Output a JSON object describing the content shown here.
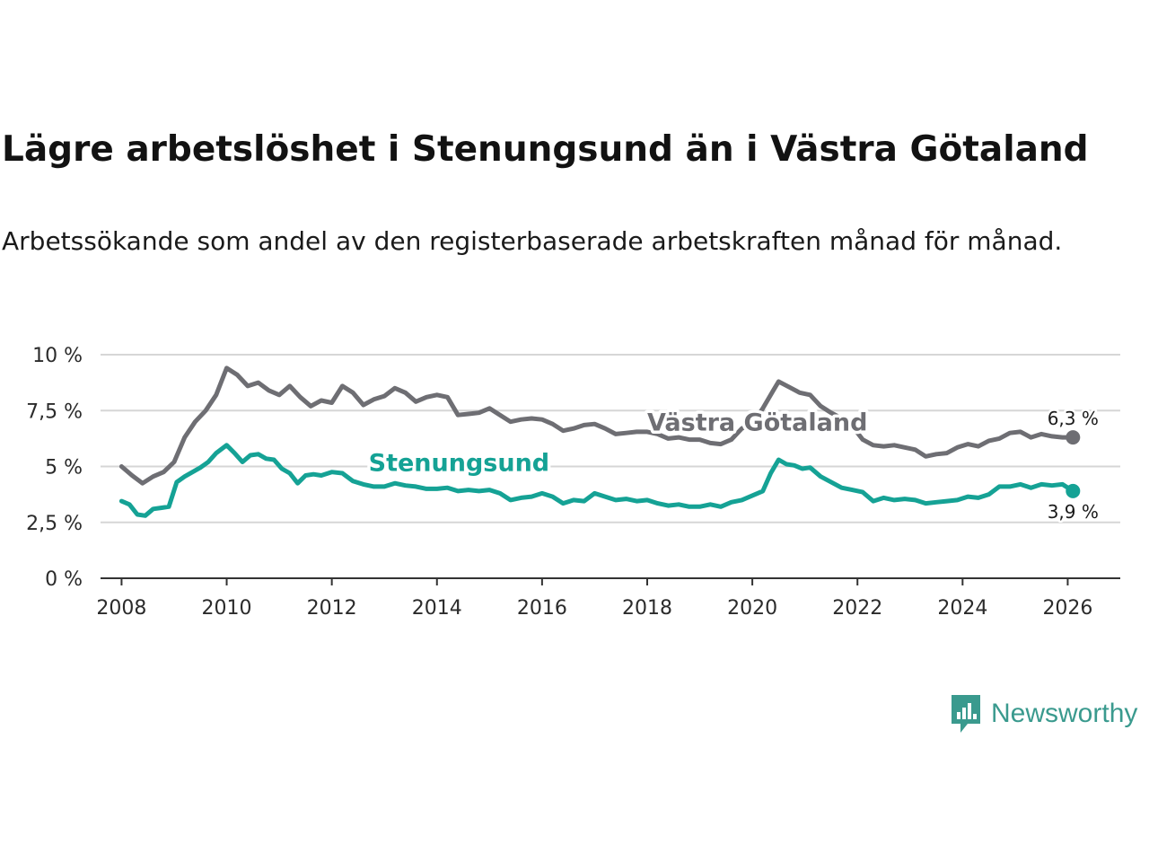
{
  "header": {
    "title": "Lägre arbetslöshet i Stenungsund än i Västra Götaland",
    "subtitle": "Arbetssökande som andel av den registerbaserade arbetskraften månad för månad."
  },
  "brand": {
    "name": "Newsworthy",
    "icon": "newsworthy-logo-icon",
    "color": "#3a9a8e"
  },
  "chart_data": {
    "type": "line",
    "title": "Lägre arbetslöshet i Stenungsund än i Västra Götaland",
    "xlabel": "",
    "ylabel": "",
    "xlim": [
      2007.6,
      2027.0
    ],
    "ylim": [
      0,
      10
    ],
    "grid": true,
    "yticks": [
      {
        "value": 0,
        "label": "0 %"
      },
      {
        "value": 2.5,
        "label": "2,5 %"
      },
      {
        "value": 5,
        "label": "5 %"
      },
      {
        "value": 7.5,
        "label": "7,5 %"
      },
      {
        "value": 10,
        "label": "10 %"
      }
    ],
    "xticks": [
      {
        "value": 2008,
        "label": "2008"
      },
      {
        "value": 2010,
        "label": "2010"
      },
      {
        "value": 2012,
        "label": "2012"
      },
      {
        "value": 2014,
        "label": "2014"
      },
      {
        "value": 2016,
        "label": "2016"
      },
      {
        "value": 2018,
        "label": "2018"
      },
      {
        "value": 2020,
        "label": "2020"
      },
      {
        "value": 2022,
        "label": "2022"
      },
      {
        "value": 2024,
        "label": "2024"
      },
      {
        "value": 2026,
        "label": "2026"
      }
    ],
    "series": [
      {
        "name": "Västra Götaland",
        "color": "#6e6e73",
        "end_label": "6,3 %",
        "label_at": [
          2018.0,
          6.6
        ],
        "points": [
          [
            2008.0,
            5.0
          ],
          [
            2008.2,
            4.6
          ],
          [
            2008.4,
            4.25
          ],
          [
            2008.6,
            4.55
          ],
          [
            2008.8,
            4.75
          ],
          [
            2009.0,
            5.2
          ],
          [
            2009.2,
            6.3
          ],
          [
            2009.4,
            7.0
          ],
          [
            2009.6,
            7.5
          ],
          [
            2009.8,
            8.2
          ],
          [
            2010.0,
            9.4
          ],
          [
            2010.2,
            9.1
          ],
          [
            2010.4,
            8.6
          ],
          [
            2010.6,
            8.75
          ],
          [
            2010.8,
            8.4
          ],
          [
            2011.0,
            8.2
          ],
          [
            2011.2,
            8.6
          ],
          [
            2011.4,
            8.1
          ],
          [
            2011.6,
            7.7
          ],
          [
            2011.8,
            7.95
          ],
          [
            2012.0,
            7.85
          ],
          [
            2012.2,
            8.6
          ],
          [
            2012.4,
            8.3
          ],
          [
            2012.6,
            7.75
          ],
          [
            2012.8,
            8.0
          ],
          [
            2013.0,
            8.15
          ],
          [
            2013.2,
            8.5
          ],
          [
            2013.4,
            8.3
          ],
          [
            2013.6,
            7.9
          ],
          [
            2013.8,
            8.1
          ],
          [
            2014.0,
            8.2
          ],
          [
            2014.2,
            8.1
          ],
          [
            2014.4,
            7.3
          ],
          [
            2014.6,
            7.35
          ],
          [
            2014.8,
            7.4
          ],
          [
            2015.0,
            7.6
          ],
          [
            2015.2,
            7.3
          ],
          [
            2015.4,
            7.0
          ],
          [
            2015.6,
            7.1
          ],
          [
            2015.8,
            7.15
          ],
          [
            2016.0,
            7.1
          ],
          [
            2016.2,
            6.9
          ],
          [
            2016.4,
            6.6
          ],
          [
            2016.6,
            6.7
          ],
          [
            2016.8,
            6.85
          ],
          [
            2017.0,
            6.9
          ],
          [
            2017.2,
            6.7
          ],
          [
            2017.4,
            6.45
          ],
          [
            2017.6,
            6.5
          ],
          [
            2017.8,
            6.55
          ],
          [
            2018.0,
            6.55
          ],
          [
            2018.2,
            6.45
          ],
          [
            2018.4,
            6.25
          ],
          [
            2018.6,
            6.3
          ],
          [
            2018.8,
            6.2
          ],
          [
            2019.0,
            6.2
          ],
          [
            2019.2,
            6.05
          ],
          [
            2019.4,
            6.0
          ],
          [
            2019.6,
            6.2
          ],
          [
            2019.8,
            6.7
          ],
          [
            2020.0,
            6.9
          ],
          [
            2020.2,
            7.6
          ],
          [
            2020.4,
            8.4
          ],
          [
            2020.5,
            8.8
          ],
          [
            2020.7,
            8.55
          ],
          [
            2020.9,
            8.3
          ],
          [
            2021.1,
            8.2
          ],
          [
            2021.3,
            7.7
          ],
          [
            2021.5,
            7.4
          ],
          [
            2021.7,
            7.15
          ],
          [
            2021.9,
            6.8
          ],
          [
            2022.1,
            6.2
          ],
          [
            2022.3,
            5.95
          ],
          [
            2022.5,
            5.9
          ],
          [
            2022.7,
            5.95
          ],
          [
            2022.9,
            5.85
          ],
          [
            2023.1,
            5.75
          ],
          [
            2023.3,
            5.45
          ],
          [
            2023.5,
            5.55
          ],
          [
            2023.7,
            5.6
          ],
          [
            2023.9,
            5.85
          ],
          [
            2024.1,
            6.0
          ],
          [
            2024.3,
            5.9
          ],
          [
            2024.5,
            6.15
          ],
          [
            2024.7,
            6.25
          ],
          [
            2024.9,
            6.5
          ],
          [
            2025.1,
            6.55
          ],
          [
            2025.3,
            6.3
          ],
          [
            2025.5,
            6.45
          ],
          [
            2025.7,
            6.35
          ],
          [
            2025.9,
            6.3
          ],
          [
            2026.1,
            6.3
          ]
        ]
      },
      {
        "name": "Stenungsund",
        "color": "#15a295",
        "end_label": "3,9 %",
        "label_at": [
          2012.7,
          4.8
        ],
        "points": [
          [
            2008.0,
            3.45
          ],
          [
            2008.15,
            3.3
          ],
          [
            2008.3,
            2.85
          ],
          [
            2008.45,
            2.8
          ],
          [
            2008.6,
            3.1
          ],
          [
            2008.75,
            3.15
          ],
          [
            2008.9,
            3.2
          ],
          [
            2009.05,
            4.3
          ],
          [
            2009.2,
            4.55
          ],
          [
            2009.35,
            4.75
          ],
          [
            2009.5,
            4.95
          ],
          [
            2009.65,
            5.2
          ],
          [
            2009.8,
            5.6
          ],
          [
            2010.0,
            5.95
          ],
          [
            2010.15,
            5.6
          ],
          [
            2010.3,
            5.2
          ],
          [
            2010.45,
            5.5
          ],
          [
            2010.6,
            5.55
          ],
          [
            2010.75,
            5.35
          ],
          [
            2010.9,
            5.3
          ],
          [
            2011.05,
            4.9
          ],
          [
            2011.2,
            4.7
          ],
          [
            2011.35,
            4.25
          ],
          [
            2011.5,
            4.6
          ],
          [
            2011.65,
            4.65
          ],
          [
            2011.8,
            4.6
          ],
          [
            2012.0,
            4.75
          ],
          [
            2012.2,
            4.7
          ],
          [
            2012.4,
            4.35
          ],
          [
            2012.6,
            4.2
          ],
          [
            2012.8,
            4.1
          ],
          [
            2013.0,
            4.1
          ],
          [
            2013.2,
            4.25
          ],
          [
            2013.4,
            4.15
          ],
          [
            2013.6,
            4.1
          ],
          [
            2013.8,
            4.0
          ],
          [
            2014.0,
            4.0
          ],
          [
            2014.2,
            4.05
          ],
          [
            2014.4,
            3.9
          ],
          [
            2014.6,
            3.95
          ],
          [
            2014.8,
            3.9
          ],
          [
            2015.0,
            3.95
          ],
          [
            2015.2,
            3.8
          ],
          [
            2015.4,
            3.5
          ],
          [
            2015.6,
            3.6
          ],
          [
            2015.8,
            3.65
          ],
          [
            2016.0,
            3.8
          ],
          [
            2016.2,
            3.65
          ],
          [
            2016.4,
            3.35
          ],
          [
            2016.6,
            3.5
          ],
          [
            2016.8,
            3.45
          ],
          [
            2017.0,
            3.8
          ],
          [
            2017.2,
            3.65
          ],
          [
            2017.4,
            3.5
          ],
          [
            2017.6,
            3.55
          ],
          [
            2017.8,
            3.45
          ],
          [
            2018.0,
            3.5
          ],
          [
            2018.2,
            3.35
          ],
          [
            2018.4,
            3.25
          ],
          [
            2018.6,
            3.3
          ],
          [
            2018.8,
            3.2
          ],
          [
            2019.0,
            3.2
          ],
          [
            2019.2,
            3.3
          ],
          [
            2019.4,
            3.2
          ],
          [
            2019.6,
            3.4
          ],
          [
            2019.8,
            3.5
          ],
          [
            2020.0,
            3.7
          ],
          [
            2020.2,
            3.9
          ],
          [
            2020.35,
            4.7
          ],
          [
            2020.5,
            5.3
          ],
          [
            2020.65,
            5.1
          ],
          [
            2020.8,
            5.05
          ],
          [
            2020.95,
            4.9
          ],
          [
            2021.1,
            4.95
          ],
          [
            2021.3,
            4.55
          ],
          [
            2021.5,
            4.3
          ],
          [
            2021.7,
            4.05
          ],
          [
            2021.9,
            3.95
          ],
          [
            2022.1,
            3.85
          ],
          [
            2022.3,
            3.45
          ],
          [
            2022.5,
            3.6
          ],
          [
            2022.7,
            3.5
          ],
          [
            2022.9,
            3.55
          ],
          [
            2023.1,
            3.5
          ],
          [
            2023.3,
            3.35
          ],
          [
            2023.5,
            3.4
          ],
          [
            2023.7,
            3.45
          ],
          [
            2023.9,
            3.5
          ],
          [
            2024.1,
            3.65
          ],
          [
            2024.3,
            3.6
          ],
          [
            2024.5,
            3.75
          ],
          [
            2024.7,
            4.1
          ],
          [
            2024.9,
            4.1
          ],
          [
            2025.1,
            4.2
          ],
          [
            2025.3,
            4.05
          ],
          [
            2025.5,
            4.2
          ],
          [
            2025.7,
            4.15
          ],
          [
            2025.9,
            4.2
          ],
          [
            2026.1,
            3.9
          ]
        ]
      }
    ]
  }
}
